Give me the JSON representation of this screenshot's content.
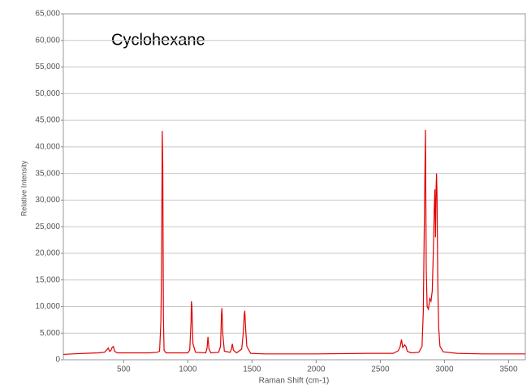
{
  "chart_data": {
    "type": "line",
    "title": "Cyclohexane",
    "xlabel": "Raman Shift (cm-1)",
    "ylabel": "Relative Intensity",
    "x": [
      30,
      100,
      200,
      300,
      350,
      370,
      380,
      390,
      400,
      410,
      420,
      430,
      450,
      600,
      700,
      760,
      780,
      790,
      795,
      801,
      805,
      810,
      815,
      830,
      900,
      1000,
      1015,
      1025,
      1028,
      1032,
      1040,
      1060,
      1140,
      1150,
      1157,
      1165,
      1180,
      1240,
      1255,
      1262,
      1266,
      1272,
      1285,
      1330,
      1340,
      1347,
      1355,
      1380,
      1420,
      1432,
      1440,
      1444,
      1450,
      1460,
      1490,
      1600,
      2000,
      2400,
      2600,
      2640,
      2655,
      2665,
      2675,
      2690,
      2700,
      2710,
      2740,
      2800,
      2825,
      2835,
      2845,
      2852,
      2858,
      2865,
      2875,
      2885,
      2895,
      2905,
      2915,
      2920,
      2925,
      2930,
      2935,
      2938,
      2942,
      2948,
      2955,
      2965,
      2990,
      3100,
      3300,
      3630
    ],
    "series": [
      {
        "name": "Cyclohexane",
        "color": "#e00000",
        "values": [
          1000,
          1100,
          1200,
          1300,
          1400,
          1900,
          2200,
          1600,
          1700,
          2300,
          2500,
          1600,
          1300,
          1300,
          1300,
          1400,
          1600,
          7000,
          16000,
          43000,
          36500,
          7800,
          1800,
          1300,
          1300,
          1300,
          1800,
          7000,
          11000,
          10000,
          3000,
          1400,
          1300,
          2200,
          4300,
          2000,
          1300,
          1400,
          2500,
          8500,
          9700,
          5000,
          1600,
          1400,
          2000,
          3000,
          1800,
          1300,
          2000,
          5000,
          8500,
          9200,
          6000,
          2500,
          1200,
          1100,
          1100,
          1200,
          1200,
          1700,
          2500,
          3800,
          2300,
          2800,
          2500,
          1600,
          1300,
          1400,
          2500,
          9000,
          30000,
          43200,
          17000,
          10000,
          9500,
          11500,
          11000,
          13000,
          22000,
          28000,
          32000,
          23000,
          32500,
          35000,
          31000,
          14000,
          6000,
          2500,
          1500,
          1200,
          1100,
          1100
        ]
      }
    ],
    "xlim": [
      30,
      3630
    ],
    "xticks": [
      500,
      1000,
      1500,
      2000,
      2500,
      3000,
      3500
    ],
    "ylim": [
      0,
      65000
    ],
    "yticks": [
      0,
      {
        "value": 5000,
        "label": "5,000"
      },
      {
        "value": 10000,
        "label": "10,000"
      },
      {
        "value": 15000,
        "label": "15,000"
      },
      {
        "value": 20000,
        "label": "20,000"
      },
      {
        "value": 25000,
        "label": "25,000"
      },
      {
        "value": 30000,
        "label": "30,000"
      },
      {
        "value": 35000,
        "label": "35,000"
      },
      {
        "value": 40000,
        "label": "40,000"
      },
      {
        "value": 45000,
        "label": "45,000"
      },
      {
        "value": 50000,
        "label": "50,000"
      },
      {
        "value": 55000,
        "label": "55,000"
      },
      {
        "value": 60000,
        "label": "60,000"
      },
      {
        "value": 65000,
        "label": "65,000"
      }
    ],
    "grid": true
  }
}
